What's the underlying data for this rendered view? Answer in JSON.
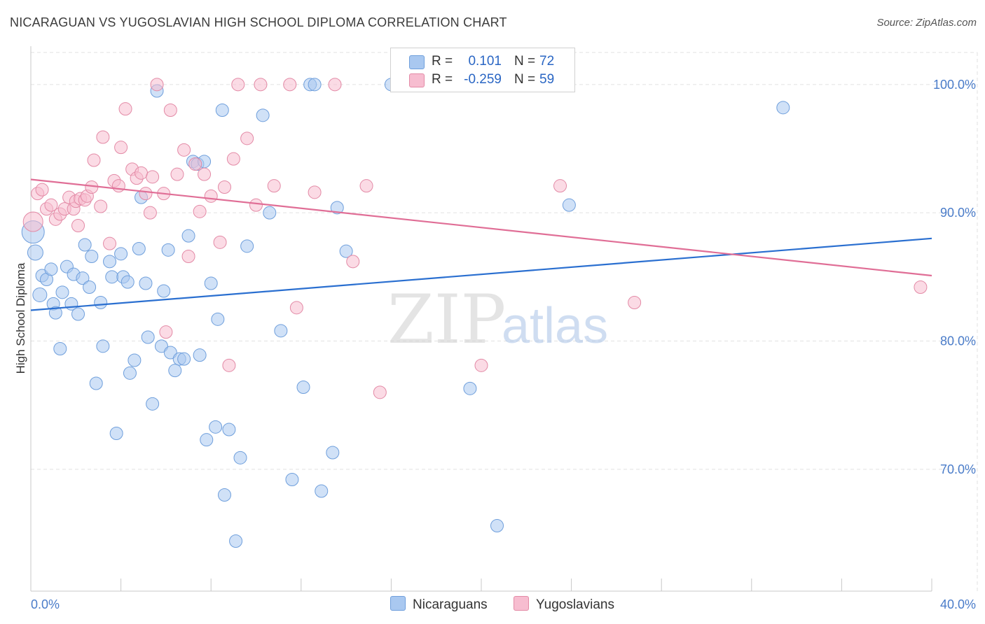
{
  "header": {
    "title": "NICARAGUAN VS YUGOSLAVIAN HIGH SCHOOL DIPLOMA CORRELATION CHART",
    "source": "Source: ZipAtlas.com"
  },
  "legend": {
    "rows": [
      {
        "r_label": "R =",
        "r_value": "0.101",
        "n_label": "N =",
        "n_value": "72",
        "color": "#a9c8f0",
        "border": "#6f9fdc"
      },
      {
        "r_label": "R =",
        "r_value": "-0.259",
        "n_label": "N =",
        "n_value": "59",
        "color": "#f7bdd0",
        "border": "#e38aa6"
      }
    ]
  },
  "bottom_legend": [
    {
      "label": "Nicaraguans",
      "color": "#a9c8f0",
      "border": "#6f9fdc"
    },
    {
      "label": "Yugoslavians",
      "color": "#f7bdd0",
      "border": "#e38aa6"
    }
  ],
  "watermark": {
    "zip": "ZIP",
    "atlas": "atlas"
  },
  "chart_data": {
    "type": "scatter",
    "title": "NICARAGUAN VS YUGOSLAVIAN HIGH SCHOOL DIPLOMA CORRELATION CHART",
    "xlabel": "",
    "ylabel": "High School Diploma",
    "xlim": [
      0,
      40
    ],
    "ylim": [
      60.5,
      102.5
    ],
    "x_tick_labels": [
      {
        "value": 0,
        "label": "0.0%"
      },
      {
        "value": 40,
        "label": "40.0%"
      }
    ],
    "x_minor_ticks": [
      4,
      8,
      12,
      16,
      20,
      24,
      28,
      32,
      36
    ],
    "y_ticks": [
      {
        "value": 70,
        "label": "70.0%"
      },
      {
        "value": 80,
        "label": "80.0%"
      },
      {
        "value": 90,
        "label": "90.0%"
      },
      {
        "value": 100,
        "label": "100.0%"
      }
    ],
    "grid": true,
    "series": [
      {
        "name": "Nicaraguans",
        "color": "#a9c8f0",
        "stroke": "#6f9fdc",
        "line_color": "#2a6fd0",
        "trend": {
          "x": [
            0,
            40
          ],
          "y": [
            82.4,
            88.0
          ]
        },
        "points": [
          [
            0.1,
            88.5,
            16
          ],
          [
            0.2,
            86.9,
            11
          ],
          [
            0.4,
            83.6,
            10
          ],
          [
            0.5,
            85.1,
            9
          ],
          [
            0.7,
            84.8,
            9
          ],
          [
            0.9,
            85.6,
            9
          ],
          [
            1.0,
            82.9,
            9
          ],
          [
            1.1,
            82.2,
            9
          ],
          [
            1.3,
            79.4,
            9
          ],
          [
            1.4,
            83.8,
            9
          ],
          [
            1.6,
            85.8,
            9
          ],
          [
            1.8,
            82.9,
            9
          ],
          [
            1.9,
            85.2,
            9
          ],
          [
            2.1,
            82.1,
            9
          ],
          [
            2.3,
            84.9,
            9
          ],
          [
            2.4,
            87.5,
            9
          ],
          [
            2.6,
            84.2,
            9
          ],
          [
            2.7,
            86.6,
            9
          ],
          [
            2.9,
            76.7,
            9
          ],
          [
            3.1,
            83.0,
            9
          ],
          [
            3.2,
            79.6,
            9
          ],
          [
            3.5,
            86.2,
            9
          ],
          [
            3.6,
            85.0,
            9
          ],
          [
            3.8,
            72.8,
            9
          ],
          [
            4.0,
            86.8,
            9
          ],
          [
            4.1,
            85.0,
            9
          ],
          [
            4.3,
            84.6,
            9
          ],
          [
            4.4,
            77.5,
            9
          ],
          [
            4.6,
            78.5,
            9
          ],
          [
            4.8,
            87.2,
            9
          ],
          [
            4.9,
            91.2,
            9
          ],
          [
            5.1,
            84.5,
            9
          ],
          [
            5.2,
            80.3,
            9
          ],
          [
            5.4,
            75.1,
            9
          ],
          [
            5.6,
            99.5,
            9
          ],
          [
            5.8,
            79.6,
            9
          ],
          [
            5.9,
            83.9,
            9
          ],
          [
            6.1,
            87.1,
            9
          ],
          [
            6.2,
            79.1,
            9
          ],
          [
            6.4,
            77.7,
            9
          ],
          [
            6.6,
            78.6,
            9
          ],
          [
            6.8,
            78.6,
            9
          ],
          [
            7.0,
            88.2,
            9
          ],
          [
            7.2,
            94.0,
            9
          ],
          [
            7.4,
            93.8,
            9
          ],
          [
            7.5,
            78.9,
            9
          ],
          [
            7.7,
            94.0,
            9
          ],
          [
            7.8,
            72.3,
            9
          ],
          [
            8.0,
            84.5,
            9
          ],
          [
            8.2,
            73.3,
            9
          ],
          [
            8.3,
            81.7,
            9
          ],
          [
            8.5,
            98.0,
            9
          ],
          [
            8.6,
            68.0,
            9
          ],
          [
            8.8,
            73.1,
            9
          ],
          [
            9.1,
            64.4,
            9
          ],
          [
            9.3,
            70.9,
            9
          ],
          [
            9.6,
            87.4,
            9
          ],
          [
            10.3,
            97.6,
            9
          ],
          [
            10.6,
            90.0,
            9
          ],
          [
            11.1,
            80.8,
            9
          ],
          [
            11.6,
            69.2,
            9
          ],
          [
            12.1,
            76.4,
            9
          ],
          [
            12.4,
            100.0,
            9
          ],
          [
            12.6,
            100.0,
            9
          ],
          [
            12.9,
            68.3,
            9
          ],
          [
            13.4,
            71.3,
            9
          ],
          [
            13.6,
            90.4,
            9
          ],
          [
            14.0,
            87.0,
            9
          ],
          [
            16.0,
            100.0,
            9
          ],
          [
            19.5,
            76.3,
            9
          ],
          [
            20.7,
            65.6,
            9
          ],
          [
            23.9,
            90.6,
            9
          ],
          [
            33.4,
            98.2,
            9
          ]
        ]
      },
      {
        "name": "Yugoslavians",
        "color": "#f7bdd0",
        "stroke": "#e38aa6",
        "line_color": "#e06e96",
        "trend": {
          "x": [
            0,
            40
          ],
          "y": [
            92.6,
            85.1
          ]
        },
        "points": [
          [
            0.1,
            89.3,
            14
          ],
          [
            0.3,
            91.5,
            9
          ],
          [
            0.5,
            91.8,
            9
          ],
          [
            0.7,
            90.3,
            9
          ],
          [
            0.9,
            90.6,
            9
          ],
          [
            1.1,
            89.5,
            9
          ],
          [
            1.3,
            89.9,
            9
          ],
          [
            1.5,
            90.3,
            9
          ],
          [
            1.7,
            91.2,
            9
          ],
          [
            1.9,
            90.3,
            9
          ],
          [
            2.0,
            90.9,
            9
          ],
          [
            2.1,
            89.0,
            9
          ],
          [
            2.2,
            91.1,
            9
          ],
          [
            2.4,
            91.0,
            9
          ],
          [
            2.5,
            91.3,
            9
          ],
          [
            2.7,
            92.0,
            9
          ],
          [
            2.8,
            94.1,
            9
          ],
          [
            3.1,
            90.5,
            9
          ],
          [
            3.2,
            95.9,
            9
          ],
          [
            3.5,
            87.6,
            9
          ],
          [
            3.7,
            92.5,
            9
          ],
          [
            3.9,
            92.1,
            9
          ],
          [
            4.0,
            95.1,
            9
          ],
          [
            4.2,
            98.1,
            9
          ],
          [
            4.5,
            93.4,
            9
          ],
          [
            4.7,
            92.7,
            9
          ],
          [
            4.9,
            93.1,
            9
          ],
          [
            5.1,
            91.5,
            9
          ],
          [
            5.3,
            90.0,
            9
          ],
          [
            5.4,
            92.8,
            9
          ],
          [
            5.6,
            100.0,
            9
          ],
          [
            5.9,
            91.5,
            9
          ],
          [
            6.0,
            80.7,
            9
          ],
          [
            6.2,
            98.0,
            9
          ],
          [
            6.5,
            93.0,
            9
          ],
          [
            6.8,
            94.9,
            9
          ],
          [
            7.0,
            86.6,
            9
          ],
          [
            7.3,
            93.8,
            9
          ],
          [
            7.5,
            90.1,
            9
          ],
          [
            7.7,
            93.0,
            9
          ],
          [
            8.0,
            91.3,
            9
          ],
          [
            8.4,
            87.7,
            9
          ],
          [
            8.6,
            92.0,
            9
          ],
          [
            8.8,
            78.1,
            9
          ],
          [
            9.0,
            94.2,
            9
          ],
          [
            9.2,
            100.0,
            9
          ],
          [
            9.6,
            95.8,
            9
          ],
          [
            10.0,
            90.6,
            9
          ],
          [
            10.2,
            100.0,
            9
          ],
          [
            10.8,
            92.1,
            9
          ],
          [
            11.5,
            100.0,
            9
          ],
          [
            11.8,
            82.6,
            9
          ],
          [
            12.6,
            91.6,
            9
          ],
          [
            13.5,
            100.0,
            9
          ],
          [
            14.3,
            86.2,
            9
          ],
          [
            14.9,
            92.1,
            9
          ],
          [
            15.5,
            76.0,
            9
          ],
          [
            20.0,
            78.1,
            9
          ],
          [
            23.5,
            92.1,
            9
          ],
          [
            26.8,
            83.0,
            9
          ],
          [
            39.5,
            84.2,
            9
          ]
        ]
      }
    ]
  }
}
